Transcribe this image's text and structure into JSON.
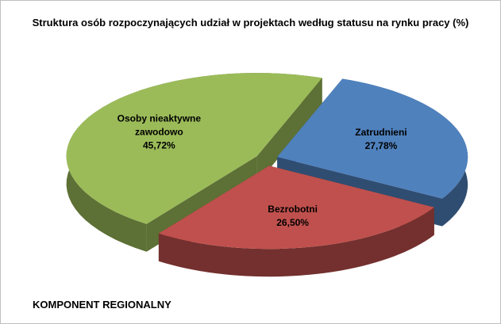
{
  "chart_data": {
    "type": "pie",
    "title": "Struktura osób rozpoczynających udział w projektach według statusu na rynku pracy (%)",
    "categories": [
      "Zatrudnieni",
      "Bezrobotni",
      "Osoby nieaktywne zawodowo"
    ],
    "values": [
      27.78,
      26.5,
      45.72
    ],
    "value_labels": [
      "27,78%",
      "26,50%",
      "45,72%"
    ],
    "colors": [
      "#4f81bd",
      "#c0504d",
      "#9bbb59"
    ],
    "footnote": "KOMPONENT REGIONALNY"
  }
}
